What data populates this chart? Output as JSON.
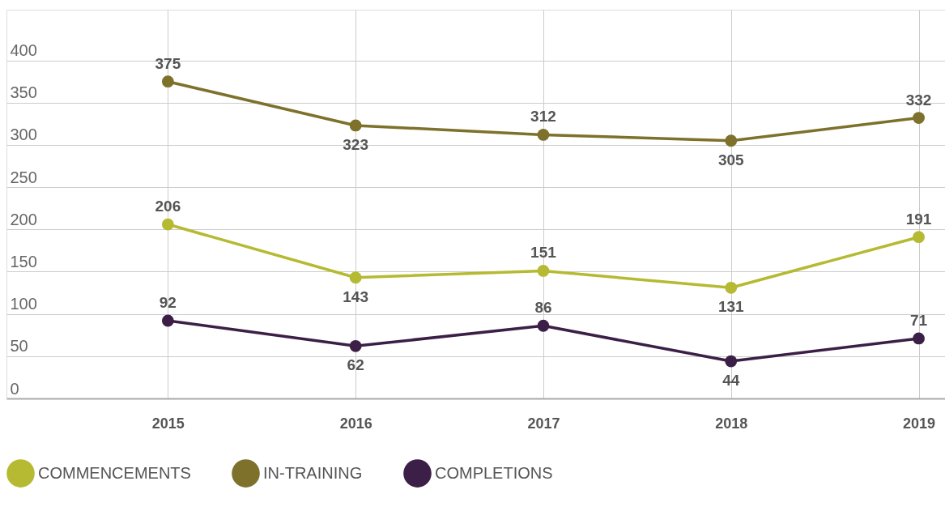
{
  "chart_data": {
    "type": "line",
    "categories": [
      "2015",
      "2016",
      "2017",
      "2018",
      "2019"
    ],
    "series": [
      {
        "name": "COMMENCEMENTS",
        "color": "#b5ba32",
        "values": [
          206,
          143,
          151,
          131,
          191
        ]
      },
      {
        "name": "IN-TRAINING",
        "color": "#7d712b",
        "values": [
          375,
          323,
          312,
          305,
          332
        ]
      },
      {
        "name": "COMPLETIONS",
        "color": "#3c1f47",
        "values": [
          92,
          62,
          86,
          44,
          71
        ]
      }
    ],
    "ylim": [
      0,
      460
    ],
    "yticks": [
      0,
      50,
      100,
      150,
      200,
      250,
      300,
      350,
      400
    ],
    "grid": true,
    "legend": "bottom",
    "marker": "circle",
    "line_style": "solid",
    "data_labels": true
  }
}
